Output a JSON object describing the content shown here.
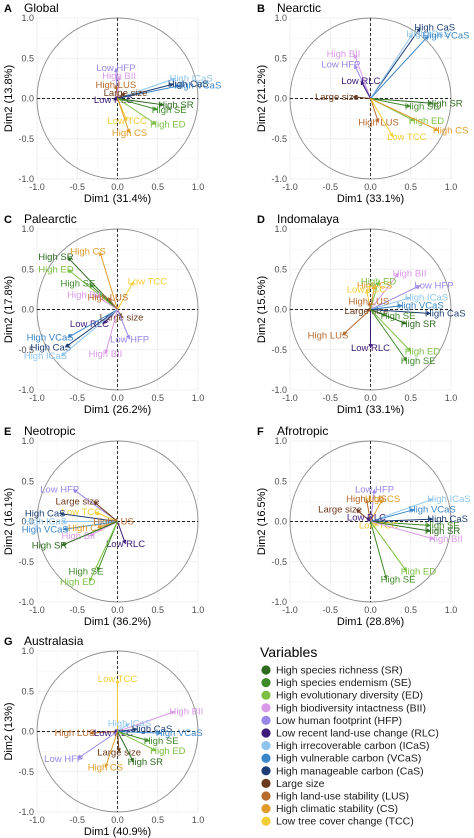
{
  "chart_data": [
    {
      "type": "scatter",
      "panel_letter": "A",
      "title": "Global",
      "xlabel": "Dim1 (31.4%)",
      "ylabel": "Dim2 (13.8%)",
      "xlim": [
        -1.0,
        1.0
      ],
      "ylim": [
        -1.0,
        1.0
      ],
      "xticks": [
        "-1.0",
        "-0.5",
        "0.0",
        "0.5",
        "1.0"
      ],
      "yticks": [
        "1.0",
        "0.5",
        "0.0",
        "-0.5",
        "-1.0"
      ],
      "vectors": [
        {
          "label": "High ICaS",
          "var": "ICaS",
          "x": 0.72,
          "y": 0.25
        },
        {
          "label": "High VCaS",
          "var": "VCaS",
          "x": 0.78,
          "y": 0.16
        },
        {
          "label": "High CaS",
          "var": "CaS",
          "x": 0.7,
          "y": 0.18
        },
        {
          "label": "Low HFP",
          "var": "HFP",
          "x": -0.02,
          "y": 0.38
        },
        {
          "label": "High BII",
          "var": "BII",
          "x": 0.02,
          "y": 0.28
        },
        {
          "label": "High LUS",
          "var": "LUS",
          "x": -0.02,
          "y": 0.17
        },
        {
          "label": "Large size",
          "var": "LS",
          "x": 0.1,
          "y": 0.07
        },
        {
          "label": "Low RLC",
          "var": "RLC",
          "x": -0.05,
          "y": -0.02
        },
        {
          "label": "High SR",
          "var": "SR",
          "x": 0.58,
          "y": -0.08
        },
        {
          "label": "High SE",
          "var": "SE",
          "x": 0.5,
          "y": -0.14
        },
        {
          "label": "High ED",
          "var": "ED",
          "x": 0.48,
          "y": -0.32
        },
        {
          "label": "Low TCC",
          "var": "TCC",
          "x": 0.12,
          "y": -0.28
        },
        {
          "label": "High CS",
          "var": "CS",
          "x": 0.15,
          "y": -0.43
        }
      ]
    },
    {
      "type": "scatter",
      "panel_letter": "B",
      "title": "Nearctic",
      "xlabel": "Dim1 (33.1%)",
      "ylabel": "Dim2 (21.2%)",
      "xlim": [
        -1.0,
        1.0
      ],
      "ylim": [
        -1.0,
        1.0
      ],
      "xticks": [
        "-1.0",
        "-0.5",
        "0.0",
        "0.5",
        "1.0"
      ],
      "yticks": [
        "1.0",
        "0.5",
        "0.0",
        "-0.5",
        "-1.0"
      ],
      "vectors": [
        {
          "label": "High CaS",
          "var": "CaS",
          "x": 0.62,
          "y": 0.88
        },
        {
          "label": "High ICaS",
          "var": "ICaS",
          "x": 0.52,
          "y": 0.8
        },
        {
          "label": "High VCaS",
          "var": "VCaS",
          "x": 0.72,
          "y": 0.78
        },
        {
          "label": "High BII",
          "var": "BII",
          "x": -0.2,
          "y": 0.55
        },
        {
          "label": "Low HFP",
          "var": "HFP",
          "x": -0.2,
          "y": 0.42
        },
        {
          "label": "Low RLC",
          "var": "RLC",
          "x": -0.12,
          "y": 0.22
        },
        {
          "label": "Large size",
          "var": "LS",
          "x": -0.22,
          "y": 0.02
        },
        {
          "label": "High SR",
          "var": "SR",
          "x": 0.78,
          "y": -0.06
        },
        {
          "label": "High SE",
          "var": "SE",
          "x": 0.5,
          "y": -0.1
        },
        {
          "label": "High ED",
          "var": "ED",
          "x": 0.55,
          "y": -0.28
        },
        {
          "label": "High LUS",
          "var": "LUS",
          "x": 0.1,
          "y": -0.3
        },
        {
          "label": "High CS",
          "var": "CS",
          "x": 0.85,
          "y": -0.4
        },
        {
          "label": "Low TCC",
          "var": "TCC",
          "x": 0.28,
          "y": -0.48
        }
      ]
    },
    {
      "type": "scatter",
      "panel_letter": "C",
      "title": "Palearctic",
      "xlabel": "Dim1 (26.2%)",
      "ylabel": "Dim2 (17.8%)",
      "xlim": [
        -1.0,
        1.0
      ],
      "ylim": [
        -1.0,
        1.0
      ],
      "xticks": [
        "-1.0",
        "-0.5",
        "0.0",
        "0.5",
        "1.0"
      ],
      "yticks": [
        "1.0",
        "0.5",
        "0.0",
        "-0.5",
        "-1.0"
      ],
      "vectors": [
        {
          "label": "High SR",
          "var": "SR",
          "x": -0.62,
          "y": 0.65
        },
        {
          "label": "High CS",
          "var": "CS",
          "x": -0.22,
          "y": 0.72
        },
        {
          "label": "High ED",
          "var": "ED",
          "x": -0.62,
          "y": 0.5
        },
        {
          "label": "Low TCC",
          "var": "TCC",
          "x": 0.2,
          "y": 0.35
        },
        {
          "label": "High SE",
          "var": "SE",
          "x": -0.35,
          "y": 0.32
        },
        {
          "label": "High BII",
          "var": "BII",
          "x": -0.28,
          "y": 0.18
        },
        {
          "label": "High LUS",
          "var": "LUS",
          "x": -0.12,
          "y": 0.15
        },
        {
          "label": "Large size",
          "var": "LS",
          "x": 0.05,
          "y": -0.1
        },
        {
          "label": "Low RLC",
          "var": "RLC",
          "x": -0.18,
          "y": -0.18
        },
        {
          "label": "High VCaS",
          "var": "VCaS",
          "x": -0.62,
          "y": -0.35
        },
        {
          "label": "High CaS",
          "var": "CaS",
          "x": -0.65,
          "y": -0.47
        },
        {
          "label": "High ICaS",
          "var": "ICaS",
          "x": -0.7,
          "y": -0.58
        },
        {
          "label": "Low HFP",
          "var": "HFP",
          "x": 0.15,
          "y": -0.37
        },
        {
          "label": "High BII",
          "var": "BII",
          "x": -0.15,
          "y": -0.55
        }
      ]
    },
    {
      "type": "scatter",
      "panel_letter": "D",
      "title": "Indomalaya",
      "xlabel": "Dim1 (33.1%)",
      "ylabel": "Dim2 (15.6%)",
      "xlim": [
        -1.0,
        1.0
      ],
      "ylim": [
        -1.0,
        1.0
      ],
      "xticks": [
        "-1.0",
        "-0.5",
        "0.0",
        "0.5",
        "1.0"
      ],
      "yticks": [
        "1.0",
        "0.5",
        "0.0",
        "-0.5",
        "-1.0"
      ],
      "vectors": [
        {
          "label": "High BII",
          "var": "BII",
          "x": 0.35,
          "y": 0.45
        },
        {
          "label": "High CS",
          "var": "CS",
          "x": 0.05,
          "y": 0.3
        },
        {
          "label": "High ED",
          "var": "ED",
          "x": 0.1,
          "y": 0.35
        },
        {
          "label": "Low HFP",
          "var": "HFP",
          "x": 0.62,
          "y": 0.3
        },
        {
          "label": "Low TCC",
          "var": "TCC",
          "x": -0.05,
          "y": 0.25
        },
        {
          "label": "High ICaS",
          "var": "ICaS",
          "x": 0.5,
          "y": 0.15
        },
        {
          "label": "High LUS",
          "var": "LUS",
          "x": -0.02,
          "y": 0.1
        },
        {
          "label": "High VCaS",
          "var": "VCaS",
          "x": 0.4,
          "y": 0.05
        },
        {
          "label": "Large size",
          "var": "LS",
          "x": -0.05,
          "y": -0.02
        },
        {
          "label": "High CaS",
          "var": "CaS",
          "x": 0.75,
          "y": -0.05
        },
        {
          "label": "High SE",
          "var": "SE",
          "x": 0.2,
          "y": -0.08
        },
        {
          "label": "High SR",
          "var": "SR",
          "x": 0.45,
          "y": -0.18
        },
        {
          "label": "High LUS",
          "var": "LUS",
          "x": -0.35,
          "y": -0.32
        },
        {
          "label": "Low RLC",
          "var": "RLC",
          "x": 0.0,
          "y": -0.48
        },
        {
          "label": "High ED",
          "var": "ED",
          "x": 0.5,
          "y": -0.52
        },
        {
          "label": "High SE",
          "var": "SE",
          "x": 0.45,
          "y": -0.64
        }
      ]
    },
    {
      "type": "scatter",
      "panel_letter": "E",
      "title": "Neotropic",
      "xlabel": "Dim1 (36.2%)",
      "ylabel": "Dim2 (16.1%)",
      "xlim": [
        -1.0,
        1.0
      ],
      "ylim": [
        -1.0,
        1.0
      ],
      "xticks": [
        "-1.0",
        "-0.5",
        "0.0",
        "0.5",
        "1.0"
      ],
      "yticks": [
        "1.0",
        "0.5",
        "0.0",
        "-0.5",
        "-1.0"
      ],
      "vectors": [
        {
          "label": "Low HFP",
          "var": "HFP",
          "x": -0.55,
          "y": 0.4
        },
        {
          "label": "Large size",
          "var": "LS",
          "x": -0.3,
          "y": 0.25
        },
        {
          "label": "Low TCC",
          "var": "TCC",
          "x": -0.28,
          "y": 0.12
        },
        {
          "label": "High CaS",
          "var": "CaS",
          "x": -0.72,
          "y": 0.1
        },
        {
          "label": "High ICaS",
          "var": "ICaS",
          "x": -0.7,
          "y": 0.0
        },
        {
          "label": "High LUS",
          "var": "LUS",
          "x": -0.05,
          "y": 0.0
        },
        {
          "label": "High VCaS",
          "var": "VCaS",
          "x": -0.68,
          "y": -0.1
        },
        {
          "label": "High CS",
          "var": "CS",
          "x": -0.25,
          "y": -0.08
        },
        {
          "label": "High BII",
          "var": "BII",
          "x": -0.35,
          "y": -0.18
        },
        {
          "label": "High SR",
          "var": "SR",
          "x": -0.7,
          "y": -0.3
        },
        {
          "label": "Low RLC",
          "var": "RLC",
          "x": 0.1,
          "y": -0.28
        },
        {
          "label": "High SE",
          "var": "SE",
          "x": -0.25,
          "y": -0.62
        },
        {
          "label": "High ED",
          "var": "ED",
          "x": -0.35,
          "y": -0.75
        }
      ]
    },
    {
      "type": "scatter",
      "panel_letter": "F",
      "title": "Afrotropic",
      "xlabel": "Dim1 (28.8%)",
      "ylabel": "Dim2 (16.5%)",
      "xlim": [
        -1.0,
        1.0
      ],
      "ylim": [
        -1.0,
        1.0
      ],
      "xticks": [
        "-1.0",
        "-0.5",
        "0.0",
        "0.5",
        "1.0"
      ],
      "yticks": [
        "1.0",
        "0.5",
        "0.0",
        "-0.5",
        "-1.0"
      ],
      "vectors": [
        {
          "label": "Low HFP",
          "var": "HFP",
          "x": 0.05,
          "y": 0.4
        },
        {
          "label": "High LUS",
          "var": "LUS",
          "x": -0.05,
          "y": 0.28
        },
        {
          "label": "High CS",
          "var": "CS",
          "x": 0.15,
          "y": 0.28
        },
        {
          "label": "High ICaS",
          "var": "ICaS",
          "x": 0.78,
          "y": 0.28
        },
        {
          "label": "Large size",
          "var": "LS",
          "x": -0.18,
          "y": 0.15
        },
        {
          "label": "High VCaS",
          "var": "VCaS",
          "x": 0.55,
          "y": 0.15
        },
        {
          "label": "Low RLC",
          "var": "RLC",
          "x": -0.05,
          "y": 0.05
        },
        {
          "label": "High CaS",
          "var": "CaS",
          "x": 0.78,
          "y": 0.03
        },
        {
          "label": "High SE",
          "var": "SE",
          "x": 0.75,
          "y": -0.05
        },
        {
          "label": "Low TCC",
          "var": "TCC",
          "x": 0.1,
          "y": -0.05
        },
        {
          "label": "High SR",
          "var": "SR",
          "x": 0.75,
          "y": -0.12
        },
        {
          "label": "High BII",
          "var": "BII",
          "x": 0.8,
          "y": -0.22
        },
        {
          "label": "High ED",
          "var": "ED",
          "x": 0.45,
          "y": -0.62
        },
        {
          "label": "High SE",
          "var": "SE",
          "x": 0.2,
          "y": -0.72
        }
      ]
    },
    {
      "type": "scatter",
      "panel_letter": "G",
      "title": "Australasia",
      "xlabel": "Dim1 (40.9%)",
      "ylabel": "Dim2 (13%)",
      "xlim": [
        -1.0,
        1.0
      ],
      "ylim": [
        -1.0,
        1.0
      ],
      "xticks": [
        "-1.0",
        "-0.5",
        "0.0",
        "0.5",
        "1.0"
      ],
      "yticks": [
        "1.0",
        "0.5",
        "0.0",
        "-0.5",
        "-1.0"
      ],
      "vectors": [
        {
          "label": "Low TCC",
          "var": "TCC",
          "x": 0.0,
          "y": 0.65
        },
        {
          "label": "High BII",
          "var": "BII",
          "x": 0.72,
          "y": 0.25
        },
        {
          "label": "High ICaS",
          "var": "ICaS",
          "x": 0.15,
          "y": 0.1
        },
        {
          "label": "High CaS",
          "var": "CaS",
          "x": 0.25,
          "y": 0.03
        },
        {
          "label": "High LUS",
          "var": "LUS",
          "x": -0.35,
          "y": -0.02
        },
        {
          "label": "Low RLC",
          "var": "RLC",
          "x": -0.05,
          "y": -0.02
        },
        {
          "label": "High VCaS",
          "var": "VCaS",
          "x": 0.55,
          "y": -0.02
        },
        {
          "label": "High SE",
          "var": "SE",
          "x": 0.4,
          "y": -0.12
        },
        {
          "label": "High ED",
          "var": "ED",
          "x": 0.48,
          "y": -0.24
        },
        {
          "label": "Large size",
          "var": "LS",
          "x": 0.02,
          "y": -0.26
        },
        {
          "label": "Low HFP",
          "var": "HFP",
          "x": -0.5,
          "y": -0.34
        },
        {
          "label": "High SR",
          "var": "SR",
          "x": 0.2,
          "y": -0.38
        },
        {
          "label": "High CS",
          "var": "CS",
          "x": -0.15,
          "y": -0.45
        }
      ]
    }
  ],
  "legend": {
    "title": "Variables",
    "items": [
      {
        "key": "SR",
        "label": "High species richness (SR)",
        "color": "#2d6a1f"
      },
      {
        "key": "SE",
        "label": "High species endemism (SE)",
        "color": "#3f8a2a"
      },
      {
        "key": "ED",
        "label": "High evolutionary diversity (ED)",
        "color": "#7cc043"
      },
      {
        "key": "BII",
        "label": "High biodiversity intactness (BII)",
        "color": "#d99ae6"
      },
      {
        "key": "HFP",
        "label": "Low human footprint (HFP)",
        "color": "#9a86e6"
      },
      {
        "key": "RLC",
        "label": "Low recent land-use change (RLC)",
        "color": "#3d1a78"
      },
      {
        "key": "ICaS",
        "label": "High irrecoverable carbon (ICaS)",
        "color": "#8fc5ec"
      },
      {
        "key": "VCaS",
        "label": "High vulnerable carbon (VCaS)",
        "color": "#3a86c8"
      },
      {
        "key": "CaS",
        "label": "High manageable carbon (CaS)",
        "color": "#1d3f75"
      },
      {
        "key": "LS",
        "label": "Large size",
        "color": "#6b3a1c"
      },
      {
        "key": "LUS",
        "label": "High land-use stability (LUS)",
        "color": "#b86a2d"
      },
      {
        "key": "CS",
        "label": "High climatic stability (CS)",
        "color": "#e09c2a"
      },
      {
        "key": "TCC",
        "label": "Low tree cover change (TCC)",
        "color": "#f2cd35"
      }
    ]
  }
}
